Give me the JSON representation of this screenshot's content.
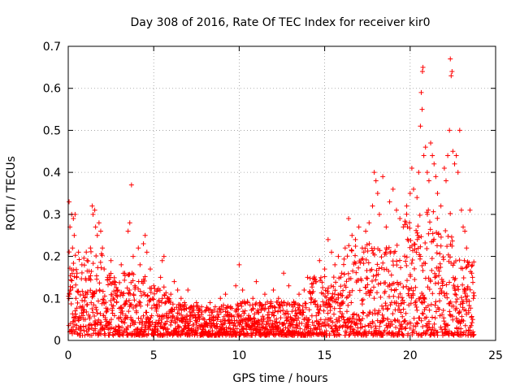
{
  "chart_data": {
    "type": "scatter",
    "title": "Day 308 of 2016, Rate Of TEC Index for receiver kir0",
    "xlabel": "GPS time / hours",
    "ylabel": "ROTI / TECUs",
    "xlim": [
      0,
      25
    ],
    "ylim": [
      0,
      0.7
    ],
    "x_ticks": [
      0,
      5,
      10,
      15,
      20,
      25
    ],
    "x_tick_labels": [
      "0",
      "5",
      "10",
      "15",
      "20",
      "25"
    ],
    "y_ticks": [
      0,
      0.1,
      0.2,
      0.3,
      0.4,
      0.5,
      0.6,
      0.7
    ],
    "y_tick_labels": [
      "0",
      "0.1",
      "0.2",
      "0.3",
      "0.4",
      "0.5",
      "0.6",
      "0.7"
    ],
    "grid": true,
    "marker": "+",
    "color": "#ff0000",
    "series": [
      {
        "name": "ROTI",
        "points": [
          [
            0.05,
            0.33
          ],
          [
            0.2,
            0.3
          ],
          [
            0.3,
            0.29
          ],
          [
            0.4,
            0.3
          ],
          [
            0.1,
            0.27
          ],
          [
            0.25,
            0.22
          ],
          [
            0.35,
            0.25
          ],
          [
            0.6,
            0.21
          ],
          [
            0.8,
            0.18
          ],
          [
            0.5,
            0.15
          ],
          [
            0.15,
            0.12
          ],
          [
            0.45,
            0.1
          ],
          [
            0.7,
            0.08
          ],
          [
            0.9,
            0.05
          ],
          [
            1.1,
            0.19
          ],
          [
            1.3,
            0.22
          ],
          [
            1.4,
            0.32
          ],
          [
            1.45,
            0.3
          ],
          [
            1.55,
            0.31
          ],
          [
            1.6,
            0.27
          ],
          [
            1.7,
            0.25
          ],
          [
            1.8,
            0.28
          ],
          [
            1.9,
            0.26
          ],
          [
            2.0,
            0.22
          ],
          [
            2.1,
            0.17
          ],
          [
            2.3,
            0.15
          ],
          [
            2.5,
            0.19
          ],
          [
            2.7,
            0.14
          ],
          [
            2.9,
            0.12
          ],
          [
            3.1,
            0.18
          ],
          [
            3.3,
            0.16
          ],
          [
            3.5,
            0.26
          ],
          [
            3.6,
            0.28
          ],
          [
            3.7,
            0.37
          ],
          [
            3.8,
            0.2
          ],
          [
            3.9,
            0.13
          ],
          [
            4.1,
            0.22
          ],
          [
            4.2,
            0.18
          ],
          [
            4.3,
            0.14
          ],
          [
            4.4,
            0.23
          ],
          [
            4.5,
            0.25
          ],
          [
            4.6,
            0.21
          ],
          [
            4.8,
            0.17
          ],
          [
            5.0,
            0.13
          ],
          [
            5.2,
            0.12
          ],
          [
            5.4,
            0.15
          ],
          [
            5.5,
            0.19
          ],
          [
            5.6,
            0.2
          ],
          [
            5.8,
            0.1
          ],
          [
            6.0,
            0.11
          ],
          [
            6.2,
            0.14
          ],
          [
            6.4,
            0.12
          ],
          [
            6.6,
            0.1
          ],
          [
            6.8,
            0.09
          ],
          [
            7.0,
            0.12
          ],
          [
            7.2,
            0.08
          ],
          [
            7.5,
            0.09
          ],
          [
            7.8,
            0.08
          ],
          [
            8.0,
            0.07
          ],
          [
            8.3,
            0.09
          ],
          [
            8.6,
            0.08
          ],
          [
            8.9,
            0.1
          ],
          [
            9.2,
            0.11
          ],
          [
            9.5,
            0.08
          ],
          [
            9.8,
            0.13
          ],
          [
            10.0,
            0.18
          ],
          [
            10.2,
            0.12
          ],
          [
            10.5,
            0.09
          ],
          [
            10.8,
            0.1
          ],
          [
            11.0,
            0.14
          ],
          [
            11.2,
            0.09
          ],
          [
            11.5,
            0.11
          ],
          [
            11.8,
            0.08
          ],
          [
            12.0,
            0.12
          ],
          [
            12.3,
            0.1
          ],
          [
            12.6,
            0.16
          ],
          [
            12.9,
            0.13
          ],
          [
            13.2,
            0.09
          ],
          [
            13.5,
            0.11
          ],
          [
            13.8,
            0.12
          ],
          [
            14.0,
            0.15
          ],
          [
            14.2,
            0.09
          ],
          [
            14.5,
            0.14
          ],
          [
            14.7,
            0.19
          ],
          [
            15.0,
            0.17
          ],
          [
            15.2,
            0.24
          ],
          [
            15.4,
            0.21
          ],
          [
            15.6,
            0.18
          ],
          [
            15.8,
            0.2
          ],
          [
            16.0,
            0.16
          ],
          [
            16.2,
            0.22
          ],
          [
            16.4,
            0.29
          ],
          [
            16.6,
            0.25
          ],
          [
            16.8,
            0.24
          ],
          [
            17.0,
            0.27
          ],
          [
            17.2,
            0.22
          ],
          [
            17.4,
            0.26
          ],
          [
            17.6,
            0.28
          ],
          [
            17.8,
            0.32
          ],
          [
            17.9,
            0.4
          ],
          [
            18.0,
            0.38
          ],
          [
            18.1,
            0.35
          ],
          [
            18.2,
            0.3
          ],
          [
            18.4,
            0.39
          ],
          [
            18.6,
            0.27
          ],
          [
            18.8,
            0.33
          ],
          [
            19.0,
            0.36
          ],
          [
            19.2,
            0.31
          ],
          [
            19.4,
            0.29
          ],
          [
            19.6,
            0.27
          ],
          [
            19.8,
            0.32
          ],
          [
            20.0,
            0.35
          ],
          [
            20.1,
            0.41
          ],
          [
            20.2,
            0.36
          ],
          [
            20.4,
            0.34
          ],
          [
            20.5,
            0.4
          ],
          [
            20.6,
            0.51
          ],
          [
            20.65,
            0.59
          ],
          [
            20.7,
            0.55
          ],
          [
            20.72,
            0.64
          ],
          [
            20.75,
            0.65
          ],
          [
            20.8,
            0.44
          ],
          [
            20.9,
            0.46
          ],
          [
            21.0,
            0.4
          ],
          [
            21.1,
            0.38
          ],
          [
            21.2,
            0.47
          ],
          [
            21.3,
            0.44
          ],
          [
            21.4,
            0.42
          ],
          [
            21.5,
            0.39
          ],
          [
            21.6,
            0.35
          ],
          [
            21.8,
            0.32
          ],
          [
            22.0,
            0.41
          ],
          [
            22.1,
            0.38
          ],
          [
            22.2,
            0.44
          ],
          [
            22.3,
            0.5
          ],
          [
            22.35,
            0.67
          ],
          [
            22.4,
            0.63
          ],
          [
            22.45,
            0.64
          ],
          [
            22.5,
            0.45
          ],
          [
            22.6,
            0.42
          ],
          [
            22.7,
            0.44
          ],
          [
            22.8,
            0.4
          ],
          [
            22.9,
            0.5
          ],
          [
            23.0,
            0.31
          ],
          [
            23.1,
            0.27
          ],
          [
            23.2,
            0.26
          ],
          [
            23.3,
            0.22
          ],
          [
            23.4,
            0.18
          ],
          [
            23.5,
            0.31
          ],
          [
            23.6,
            0.16
          ],
          [
            23.7,
            0.1
          ]
        ]
      }
    ]
  }
}
